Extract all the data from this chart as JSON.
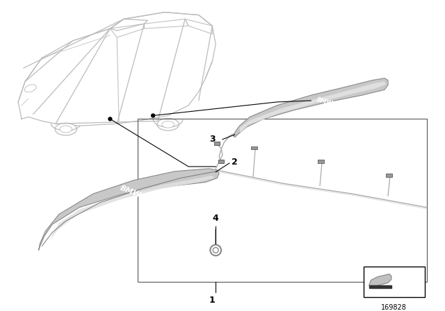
{
  "background_color": "#ffffff",
  "diagram_number": "169828",
  "line_color": "#000000",
  "car_line_color": "#bbbbbb",
  "part_fill_light": "#d4d4d4",
  "part_fill_dark": "#a8a8a8",
  "part_edge_color": "#888888",
  "wire_color": "#aaaaaa",
  "connector_color": "#999999"
}
